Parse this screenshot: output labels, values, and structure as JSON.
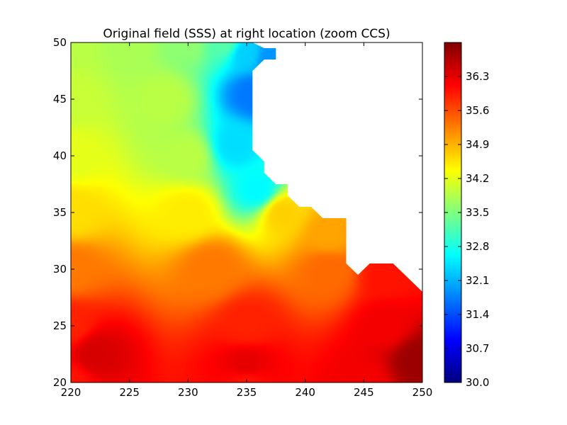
{
  "chart_data": {
    "type": "heatmap",
    "title": "Original field (SSS) at right location (zoom CCS)",
    "xlabel": "",
    "ylabel": "",
    "xlim": [
      220,
      250
    ],
    "ylim": [
      20,
      50
    ],
    "x_ticks": [
      "220",
      "225",
      "230",
      "235",
      "240",
      "245",
      "250"
    ],
    "y_ticks": [
      "20",
      "25",
      "30",
      "35",
      "40",
      "45",
      "50"
    ],
    "colormap": "jet",
    "colorbar": {
      "min": 30.0,
      "max": 37.0,
      "ticks": [
        "30.0",
        "30.7",
        "31.4",
        "32.1",
        "32.8",
        "33.5",
        "34.2",
        "34.9",
        "35.6",
        "36.3"
      ],
      "tick_values": [
        30.0,
        30.7,
        31.4,
        32.1,
        32.8,
        33.5,
        34.2,
        34.9,
        35.6,
        36.3
      ]
    },
    "land_mask_polygon": [
      [
        235.5,
        50
      ],
      [
        250,
        50
      ],
      [
        250,
        28
      ],
      [
        247.5,
        30.5
      ],
      [
        245.5,
        30.5
      ],
      [
        244.5,
        29.5
      ],
      [
        243.5,
        30.5
      ],
      [
        243.5,
        34.5
      ],
      [
        241.5,
        34.5
      ],
      [
        240.5,
        35.5
      ],
      [
        239.5,
        35.5
      ],
      [
        238.5,
        36.5
      ],
      [
        238.5,
        37.5
      ],
      [
        237.5,
        37.5
      ],
      [
        236.5,
        38.5
      ],
      [
        236.5,
        39.5
      ],
      [
        235.5,
        40.5
      ],
      [
        235.5,
        47.5
      ],
      [
        236.5,
        48.5
      ],
      [
        237.5,
        48.5
      ],
      [
        237.5,
        49.5
      ],
      [
        236.5,
        49.5
      ]
    ],
    "field_points": [
      {
        "lon": 220,
        "lat": 50,
        "value": 33.9
      },
      {
        "lon": 225,
        "lat": 50,
        "value": 33.8
      },
      {
        "lon": 230,
        "lat": 50,
        "value": 33.6
      },
      {
        "lon": 233,
        "lat": 50,
        "value": 33.2
      },
      {
        "lon": 235,
        "lat": 49,
        "value": 32.3
      },
      {
        "lon": 237,
        "lat": 48.7,
        "value": 31.9
      },
      {
        "lon": 235.5,
        "lat": 45.5,
        "value": 31.7
      },
      {
        "lon": 234,
        "lat": 41,
        "value": 32.4
      },
      {
        "lon": 236,
        "lat": 37,
        "value": 32.6
      },
      {
        "lon": 220,
        "lat": 45,
        "value": 34.0
      },
      {
        "lon": 228,
        "lat": 45,
        "value": 33.9
      },
      {
        "lon": 220,
        "lat": 40,
        "value": 34.2
      },
      {
        "lon": 230,
        "lat": 40,
        "value": 33.9
      },
      {
        "lon": 220,
        "lat": 35,
        "value": 34.6
      },
      {
        "lon": 230,
        "lat": 35,
        "value": 34.5
      },
      {
        "lon": 238,
        "lat": 35,
        "value": 34.7
      },
      {
        "lon": 242,
        "lat": 33,
        "value": 35.0
      },
      {
        "lon": 220,
        "lat": 30,
        "value": 35.3
      },
      {
        "lon": 232,
        "lat": 30,
        "value": 35.3
      },
      {
        "lon": 242,
        "lat": 30,
        "value": 35.4
      },
      {
        "lon": 247,
        "lat": 29.5,
        "value": 36.0
      },
      {
        "lon": 220,
        "lat": 25,
        "value": 35.9
      },
      {
        "lon": 235,
        "lat": 25,
        "value": 35.9
      },
      {
        "lon": 247,
        "lat": 25,
        "value": 36.2
      },
      {
        "lon": 222,
        "lat": 22.5,
        "value": 36.4
      },
      {
        "lon": 235,
        "lat": 21.5,
        "value": 36.3
      },
      {
        "lon": 249.5,
        "lat": 22,
        "value": 36.8
      },
      {
        "lon": 220,
        "lat": 20,
        "value": 36.0
      },
      {
        "lon": 235,
        "lat": 20,
        "value": 36.0
      },
      {
        "lon": 245,
        "lat": 20,
        "value": 36.2
      }
    ]
  }
}
